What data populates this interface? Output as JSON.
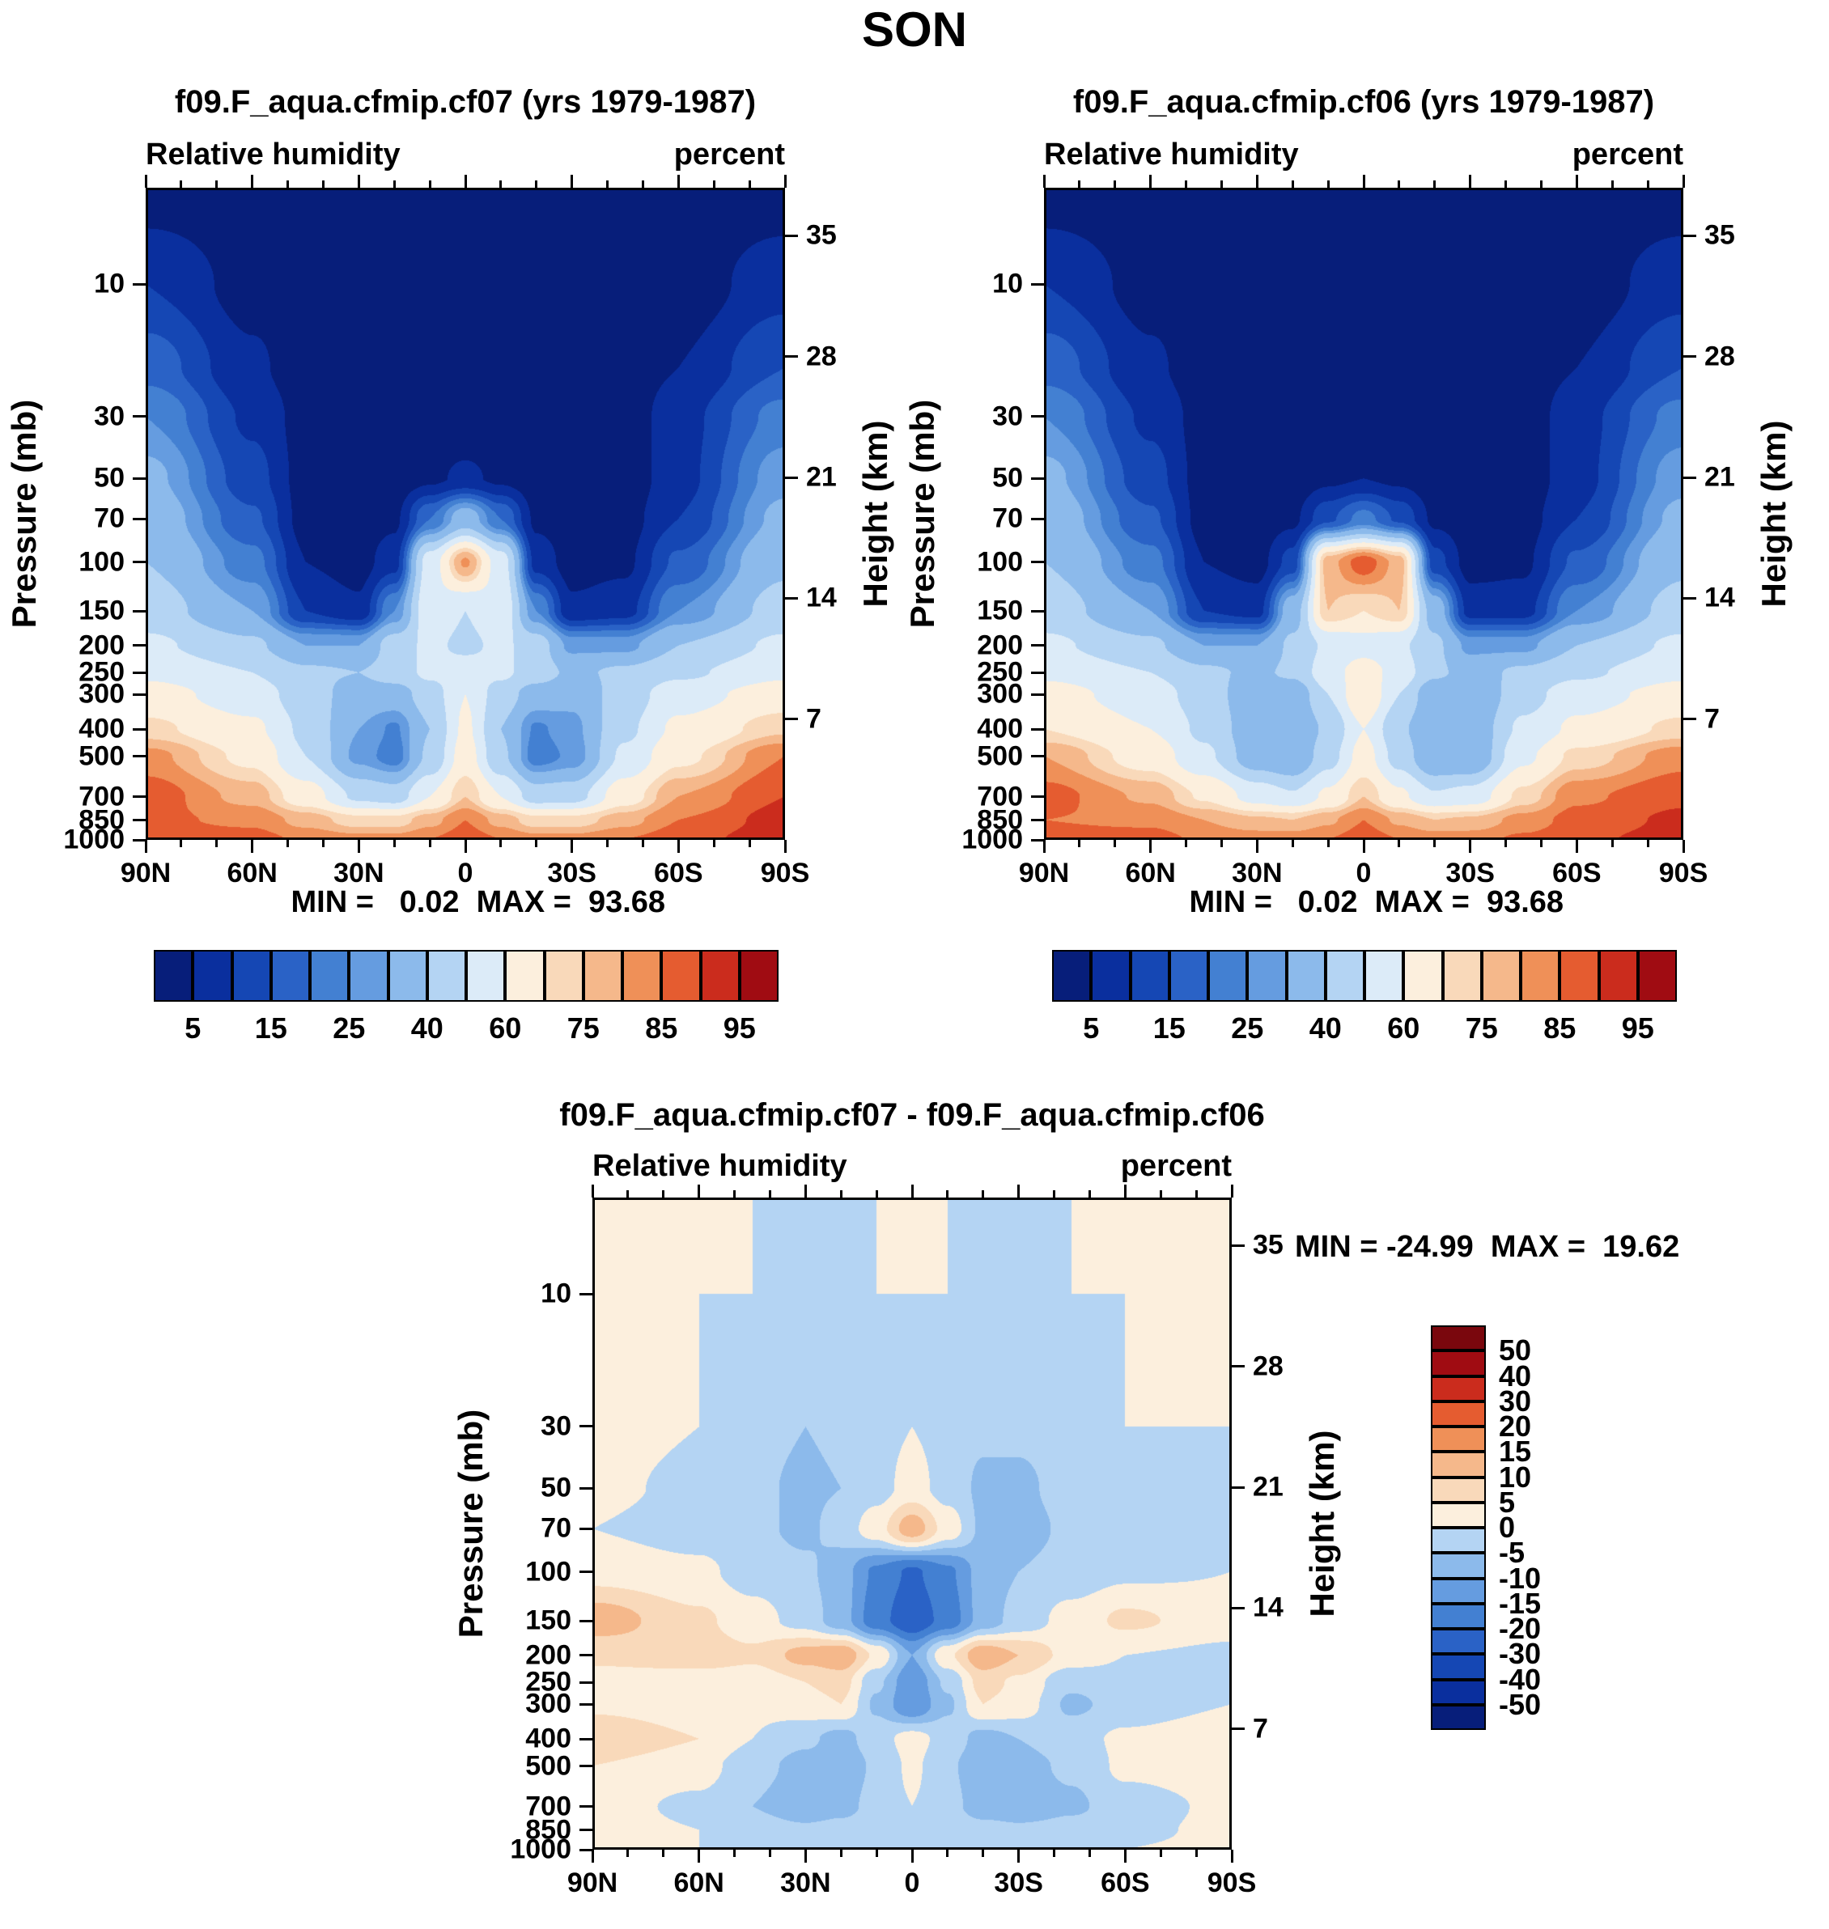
{
  "title": "SON",
  "axes": {
    "field_label": "Relative humidity",
    "units_label": "percent",
    "pressure_label": "Pressure (mb)",
    "height_label": "Height (km)",
    "lat_ticks": [
      "90N",
      "60N",
      "30N",
      "0",
      "30S",
      "60S",
      "90S"
    ],
    "lat_minor_step_deg": 10,
    "pressure_ticks": [
      10,
      30,
      50,
      70,
      100,
      150,
      200,
      250,
      300,
      400,
      500,
      700,
      850,
      1000
    ],
    "height_ticks_km": [
      35,
      28,
      21,
      14,
      7
    ],
    "pressure_top_mb": 4.5,
    "pressure_bottom_mb": 1000
  },
  "chart_data": [
    {
      "type": "heatmap",
      "id": "cf07",
      "title": "f09.F_aqua.cfmip.cf07 (yrs 1979-1987)",
      "minmax": "MIN =   0.02  MAX =  93.68",
      "lats": [
        90,
        60,
        45,
        30,
        20,
        10,
        0,
        -10,
        -20,
        -30,
        -45,
        -60,
        -90
      ],
      "pressures_mb": [
        4.5,
        10,
        20,
        30,
        50,
        70,
        100,
        150,
        200,
        250,
        300,
        400,
        500,
        700,
        850,
        1000
      ],
      "values_percent": [
        [
          2,
          1,
          1,
          1,
          1,
          1,
          1,
          1,
          1,
          1,
          1,
          1,
          2
        ],
        [
          10,
          3,
          1,
          1,
          1,
          1,
          1,
          1,
          1,
          1,
          1,
          2,
          8
        ],
        [
          18,
          6,
          2,
          1,
          1,
          1,
          1,
          1,
          1,
          1,
          2,
          5,
          15
        ],
        [
          25,
          9,
          3,
          1,
          1,
          1,
          1,
          1,
          1,
          1,
          2,
          8,
          22
        ],
        [
          32,
          12,
          3,
          2,
          2,
          4,
          6,
          4,
          2,
          2,
          2,
          8,
          28
        ],
        [
          36,
          16,
          3,
          2,
          4,
          20,
          35,
          20,
          4,
          2,
          3,
          10,
          32
        ],
        [
          40,
          22,
          5,
          3,
          8,
          55,
          81,
          55,
          8,
          3,
          4,
          16,
          38
        ],
        [
          45,
          30,
          10,
          6,
          25,
          58,
          50,
          58,
          25,
          6,
          8,
          25,
          44
        ],
        [
          52,
          42,
          30,
          30,
          45,
          52,
          48,
          52,
          45,
          28,
          28,
          40,
          52
        ],
        [
          58,
          50,
          42,
          40,
          45,
          52,
          55,
          52,
          45,
          38,
          42,
          48,
          58
        ],
        [
          64,
          55,
          45,
          35,
          35,
          45,
          60,
          45,
          35,
          32,
          45,
          56,
          65
        ],
        [
          72,
          62,
          48,
          30,
          24,
          40,
          62,
          40,
          24,
          28,
          48,
          62,
          74
        ],
        [
          82,
          68,
          50,
          28,
          22,
          42,
          65,
          42,
          22,
          26,
          52,
          68,
          85
        ],
        [
          88,
          78,
          65,
          48,
          45,
          60,
          75,
          60,
          45,
          46,
          66,
          80,
          90
        ],
        [
          86,
          84,
          78,
          72,
          72,
          78,
          85,
          78,
          72,
          72,
          78,
          85,
          92
        ],
        [
          88,
          87,
          84,
          82,
          82,
          85,
          88,
          85,
          82,
          82,
          85,
          88,
          93
        ]
      ],
      "levels": [
        5,
        10,
        15,
        20,
        25,
        30,
        40,
        50,
        60,
        70,
        75,
        80,
        85,
        90,
        95
      ],
      "colors": [
        "#071e7a",
        "#0a2f9e",
        "#1547b4",
        "#2a62c6",
        "#4380d2",
        "#659ce0",
        "#8cbaeb",
        "#b4d4f3",
        "#dcebf8",
        "#fcefdd",
        "#f9d9ba",
        "#f5b88b",
        "#ef9058",
        "#e55c30",
        "#cb2c1d",
        "#a00c12"
      ],
      "colorbar": {
        "orientation": "horizontal",
        "labels": [
          "5",
          "15",
          "25",
          "40",
          "60",
          "75",
          "85",
          "95"
        ],
        "boundary_indices": [
          1,
          3,
          5,
          7,
          9,
          11,
          13,
          15
        ]
      }
    },
    {
      "type": "heatmap",
      "id": "cf06",
      "title": "f09.F_aqua.cfmip.cf06 (yrs 1979-1987)",
      "minmax": "MIN =   0.02  MAX =  93.68",
      "lats": [
        90,
        60,
        45,
        30,
        20,
        10,
        0,
        -10,
        -20,
        -30,
        -45,
        -60,
        -90
      ],
      "pressures_mb": [
        4.5,
        10,
        20,
        30,
        50,
        70,
        100,
        150,
        200,
        250,
        300,
        400,
        500,
        700,
        850,
        1000
      ],
      "values_percent": [
        [
          2,
          1,
          1,
          1,
          1,
          1,
          1,
          1,
          1,
          1,
          1,
          1,
          2
        ],
        [
          10,
          3,
          1,
          1,
          1,
          1,
          1,
          1,
          1,
          1,
          1,
          2,
          8
        ],
        [
          18,
          6,
          2,
          1,
          1,
          1,
          1,
          1,
          1,
          1,
          2,
          5,
          15
        ],
        [
          25,
          9,
          3,
          1,
          1,
          1,
          1,
          1,
          1,
          1,
          2,
          8,
          22
        ],
        [
          32,
          12,
          3,
          2,
          2,
          4,
          5,
          4,
          2,
          2,
          2,
          8,
          28
        ],
        [
          36,
          16,
          3,
          2,
          4,
          14,
          22,
          14,
          4,
          2,
          3,
          10,
          32
        ],
        [
          40,
          22,
          5,
          3,
          12,
          78,
          88,
          78,
          12,
          3,
          4,
          16,
          38
        ],
        [
          45,
          30,
          10,
          8,
          35,
          75,
          70,
          75,
          35,
          8,
          8,
          25,
          44
        ],
        [
          52,
          42,
          30,
          30,
          42,
          52,
          56,
          52,
          42,
          28,
          28,
          40,
          52
        ],
        [
          58,
          50,
          42,
          38,
          42,
          56,
          65,
          56,
          42,
          36,
          42,
          48,
          58
        ],
        [
          64,
          55,
          45,
          33,
          32,
          50,
          70,
          50,
          32,
          30,
          46,
          56,
          64
        ],
        [
          70,
          60,
          48,
          33,
          30,
          42,
          60,
          42,
          30,
          32,
          52,
          62,
          72
        ],
        [
          80,
          66,
          52,
          34,
          30,
          46,
          64,
          46,
          30,
          30,
          58,
          72,
          83
        ],
        [
          87,
          79,
          69,
          56,
          51,
          62,
          75,
          62,
          51,
          54,
          72,
          84,
          89
        ],
        [
          85,
          84,
          80,
          76,
          75,
          79,
          85,
          79,
          75,
          76,
          82,
          87,
          91
        ],
        [
          87,
          87,
          84,
          83,
          83,
          85,
          88,
          85,
          83,
          83,
          86,
          89,
          92
        ]
      ],
      "levels": [
        5,
        10,
        15,
        20,
        25,
        30,
        40,
        50,
        60,
        70,
        75,
        80,
        85,
        90,
        95
      ],
      "colors": [
        "#071e7a",
        "#0a2f9e",
        "#1547b4",
        "#2a62c6",
        "#4380d2",
        "#659ce0",
        "#8cbaeb",
        "#b4d4f3",
        "#dcebf8",
        "#fcefdd",
        "#f9d9ba",
        "#f5b88b",
        "#ef9058",
        "#e55c30",
        "#cb2c1d",
        "#a00c12"
      ],
      "colorbar": {
        "orientation": "horizontal",
        "labels": [
          "5",
          "15",
          "25",
          "40",
          "60",
          "75",
          "85",
          "95"
        ],
        "boundary_indices": [
          1,
          3,
          5,
          7,
          9,
          11,
          13,
          15
        ]
      }
    },
    {
      "type": "heatmap",
      "id": "diff",
      "title": "f09.F_aqua.cfmip.cf07 - f09.F_aqua.cfmip.cf06",
      "minmax": "MIN = -24.99  MAX =  19.62",
      "lats": [
        90,
        60,
        45,
        30,
        20,
        10,
        0,
        -10,
        -20,
        -30,
        -45,
        -60,
        -90
      ],
      "pressures_mb": [
        4.5,
        10,
        20,
        30,
        50,
        70,
        100,
        150,
        200,
        250,
        300,
        400,
        500,
        700,
        850,
        1000
      ],
      "values_percent": [
        [
          0,
          0,
          0,
          0,
          0,
          0,
          0,
          0,
          0,
          0,
          0,
          0,
          0
        ],
        [
          0,
          0,
          0,
          -1,
          -1,
          0,
          0,
          0,
          -1,
          -1,
          0,
          0,
          0
        ],
        [
          1,
          0,
          -2,
          -3,
          -2,
          -1,
          0,
          -1,
          -2,
          -2,
          -1,
          0,
          0
        ],
        [
          2,
          0,
          -3,
          -5,
          -4,
          -2,
          0,
          -2,
          -4,
          -4,
          -2,
          0,
          0
        ],
        [
          1,
          -1,
          -4,
          -6,
          -5,
          -2,
          2,
          -2,
          -6,
          -6,
          -3,
          -1,
          0
        ],
        [
          0,
          -2,
          -4,
          -6,
          -3,
          3,
          13,
          3,
          -6,
          -7,
          -4,
          -2,
          0
        ],
        [
          3,
          1,
          -2,
          -4,
          -8,
          -16,
          -21,
          -16,
          -8,
          -5,
          -3,
          -1,
          0
        ],
        [
          13,
          6,
          2,
          -2,
          -8,
          -18,
          -24,
          -18,
          -8,
          -3,
          2,
          6,
          2
        ],
        [
          6,
          8,
          6,
          12,
          14,
          4,
          -10,
          4,
          14,
          10,
          3,
          0,
          -1
        ],
        [
          3,
          2,
          2,
          5,
          7,
          -4,
          -14,
          -4,
          7,
          4,
          -4,
          -2,
          0
        ],
        [
          4,
          2,
          1,
          3,
          5,
          -6,
          -15,
          -6,
          5,
          3,
          -6,
          -3,
          0
        ],
        [
          9,
          5,
          0,
          -4,
          -7,
          -2,
          2,
          -2,
          -7,
          -5,
          -2,
          1,
          4
        ],
        [
          5,
          2,
          -3,
          -7,
          -9,
          -4,
          1,
          -4,
          -9,
          -7,
          -4,
          1,
          3
        ],
        [
          2,
          -1,
          -5,
          -9,
          -7,
          -3,
          0,
          -3,
          -8,
          -9,
          -6,
          -2,
          1
        ],
        [
          2,
          0,
          -2,
          -4,
          -3,
          -1,
          0,
          -1,
          -3,
          -4,
          -3,
          -1,
          1
        ],
        [
          1,
          0,
          -1,
          -1,
          -1,
          0,
          0,
          0,
          -1,
          -1,
          -1,
          0,
          1
        ]
      ],
      "levels": [
        -50,
        -40,
        -30,
        -20,
        -15,
        -10,
        -5,
        0,
        5,
        10,
        15,
        20,
        30,
        40,
        50
      ],
      "colors": [
        "#071e7a",
        "#0a2f9e",
        "#1547b4",
        "#2a62c6",
        "#4380d2",
        "#659ce0",
        "#8cbaeb",
        "#b4d4f3",
        "#fcefdd",
        "#f9d9ba",
        "#f5b88b",
        "#ef9058",
        "#e55c30",
        "#cb2c1d",
        "#a00c12",
        "#7a070d"
      ],
      "colorbar": {
        "orientation": "vertical",
        "labels_top_to_bottom": [
          "50",
          "40",
          "30",
          "20",
          "15",
          "10",
          "5",
          "0",
          "-5",
          "-10",
          "-15",
          "-20",
          "-30",
          "-40",
          "-50"
        ]
      }
    }
  ]
}
